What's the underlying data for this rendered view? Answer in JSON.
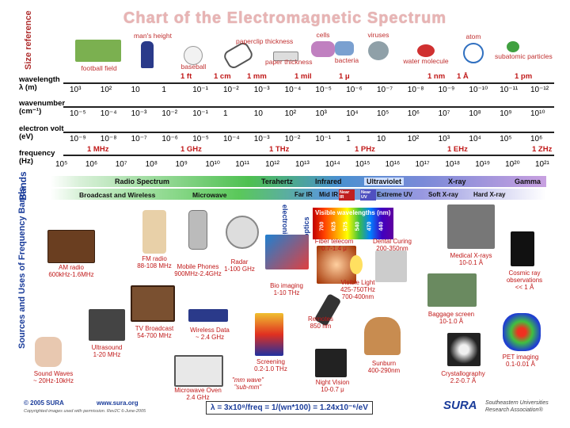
{
  "title": "Chart of the Electromagnetic Spectrum",
  "side_labels": {
    "size_reference": "Size reference",
    "bands": "Bands",
    "sources": "Sources and Uses of Frequency Bands"
  },
  "size_refs": [
    "football field",
    "man's height",
    "baseball",
    "paperclip thickness",
    "paper thickness",
    "cells",
    "bacteria",
    "viruses",
    "water molecule",
    "atom",
    "subatomic particles"
  ],
  "row_labels": {
    "wavelength": "wavelength",
    "wavelength_unit": "λ (m)",
    "wavenumber": "wavenumber",
    "wavenumber_unit": "(cm⁻¹)",
    "electronvolt": "electron volt",
    "electronvolt_unit": "(eV)",
    "frequency": "frequency",
    "frequency_unit": "(Hz)"
  },
  "wavelength_red": [
    "1 ft",
    "1 cm",
    "1 mm",
    "1 mil",
    "1 μ",
    "1 nm",
    "1 Å",
    "1 pm"
  ],
  "wavelength_vals": [
    "10³",
    "10²",
    "10",
    "1",
    "10⁻¹",
    "10⁻²",
    "10⁻³",
    "10⁻⁴",
    "10⁻⁵",
    "10⁻⁶",
    "10⁻⁷",
    "10⁻⁸",
    "10⁻⁹",
    "10⁻¹⁰",
    "10⁻¹¹",
    "10⁻¹²"
  ],
  "wavenumber_vals": [
    "10⁻⁵",
    "10⁻⁴",
    "10⁻³",
    "10⁻²",
    "10⁻¹",
    "1",
    "10",
    "10²",
    "10³",
    "10⁴",
    "10⁵",
    "10⁶",
    "10⁷",
    "10⁸",
    "10⁹",
    "10¹⁰"
  ],
  "ev_vals": [
    "10⁻⁹",
    "10⁻⁸",
    "10⁻⁷",
    "10⁻⁶",
    "10⁻⁵",
    "10⁻⁴",
    "10⁻³",
    "10⁻²",
    "10⁻¹",
    "1",
    "10",
    "10²",
    "10³",
    "10⁴",
    "10⁵",
    "10⁶"
  ],
  "freq_red": [
    "1 MHz",
    "1 GHz",
    "1 THz",
    "1 PHz",
    "1 EHz",
    "1 ZHz"
  ],
  "freq_vals": [
    "10⁵",
    "10⁶",
    "10⁷",
    "10⁸",
    "10⁹",
    "10¹⁰",
    "10¹¹",
    "10¹²",
    "10¹³",
    "10¹⁴",
    "10¹⁵",
    "10¹⁶",
    "10¹⁷",
    "10¹⁸",
    "10¹⁹",
    "10²⁰",
    "10²¹"
  ],
  "bands": {
    "radio": "Radio Spectrum",
    "terahertz": "Terahertz",
    "infrared": "Infrared",
    "ultraviolet": "Ultraviolet",
    "xray": "X-ray",
    "gamma": "Gamma",
    "broadcast": "Broadcast and Wireless",
    "microwave": "Microwave",
    "farir": "Far IR",
    "midir": "Mid IR",
    "nearir": "Near IR",
    "nearuv": "Near UV",
    "extremeuv": "Extreme UV",
    "softx": "Soft X-ray",
    "hardx": "Hard X-ray",
    "visible": "Visible wavelengths (nm)",
    "electronics": "electronics",
    "optics": "optics",
    "vis_nm": [
      "700",
      "625",
      "575",
      "540",
      "470",
      "440"
    ]
  },
  "sources": {
    "am": [
      "AM radio",
      "600kHz-1.6MHz"
    ],
    "fm": [
      "FM radio",
      "88-108 MHz"
    ],
    "phones": [
      "Mobile Phones",
      "900MHz-2.4GHz"
    ],
    "radar": [
      "Radar",
      "1-100 GHz"
    ],
    "tv": [
      "TV Broadcast",
      "54-700 MHz"
    ],
    "wireless": [
      "Wireless Data",
      "~ 2.4 GHz"
    ],
    "ultrasound": [
      "Ultrasound",
      "1-20 MHz"
    ],
    "sound": [
      "Sound Waves",
      "~ 20Hz-10kHz"
    ],
    "oven": [
      "Microwave Oven",
      "2.4 GHz"
    ],
    "fiber": [
      "Fiber telecom",
      "0.7-1.4 μ"
    ],
    "dental": [
      "Dental Curing",
      "200-350nm"
    ],
    "bioimaging": [
      "Bio imaging",
      "1-10 THz"
    ],
    "visible": [
      "Visible Light",
      "425-750THz",
      "700-400nm"
    ],
    "remotes": [
      "Remotes",
      "850 nm"
    ],
    "screening": [
      "Screening",
      "0.2-1.0 THz"
    ],
    "nightvision": [
      "Night Vision",
      "10-0.7 μ"
    ],
    "sunburn": [
      "Sunburn",
      "400-290nm"
    ],
    "medical": [
      "Medical X-rays",
      "10-0.1 Å"
    ],
    "cosmic": [
      "Cosmic ray",
      "observations",
      "<< 1 Å"
    ],
    "baggage": [
      "Baggage screen",
      "10-1.0 Å"
    ],
    "crystal": [
      "Crystallography",
      "2.2-0.7 Å"
    ],
    "pet": [
      "PET imaging",
      "0.1-0.01 Å"
    ],
    "thzmm": [
      "\"mm wave\"",
      "\"sub-mm\""
    ]
  },
  "footer": {
    "copyright": "© 2005 SURA",
    "site": "www.sura.org",
    "permission": "Copyrighted images used with permission. Rev2C 6-June-2005",
    "formula": "λ = 3x10⁸/freq = 1/(wn*100) = 1.24x10⁻⁶/eV",
    "logo": "SURA",
    "org1": "Southeastern Universities",
    "org2": "Research Association®"
  },
  "colors": {
    "title": "#e8b4b4",
    "labels": "#c01818",
    "side": "#1a3c9a"
  }
}
